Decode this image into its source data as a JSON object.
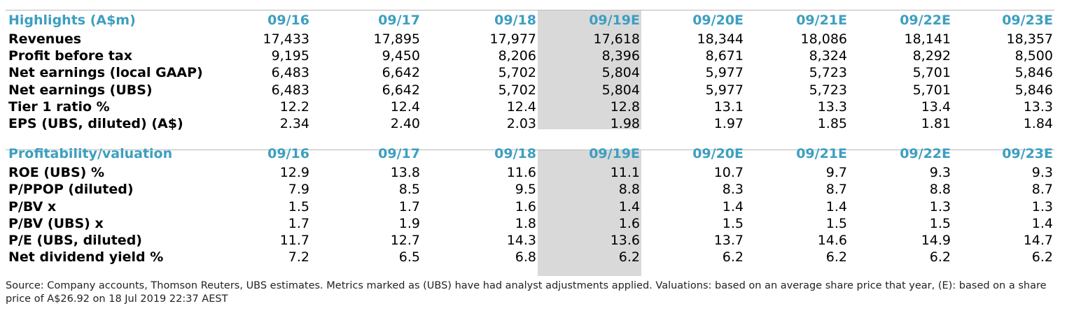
{
  "columns": [
    "09/16",
    "09/17",
    "09/18",
    "09/19E",
    "09/20E",
    "09/21E",
    "09/22E",
    "09/23E"
  ],
  "highlights": {
    "title": "Highlights (A$m)",
    "rows": [
      {
        "label": "Revenues",
        "values": [
          "17,433",
          "17,895",
          "17,977",
          "17,618",
          "18,344",
          "18,086",
          "18,141",
          "18,357"
        ]
      },
      {
        "label": "Profit before tax",
        "values": [
          "9,195",
          "9,450",
          "8,206",
          "8,396",
          "8,671",
          "8,324",
          "8,292",
          "8,500"
        ]
      },
      {
        "label": "Net earnings (local GAAP)",
        "values": [
          "6,483",
          "6,642",
          "5,702",
          "5,804",
          "5,977",
          "5,723",
          "5,701",
          "5,846"
        ]
      },
      {
        "label": "Net earnings (UBS)",
        "values": [
          "6,483",
          "6,642",
          "5,702",
          "5,804",
          "5,977",
          "5,723",
          "5,701",
          "5,846"
        ]
      },
      {
        "label": "Tier 1 ratio %",
        "values": [
          "12.2",
          "12.4",
          "12.4",
          "12.8",
          "13.1",
          "13.3",
          "13.4",
          "13.3"
        ]
      },
      {
        "label": "EPS (UBS, diluted) (A$)",
        "values": [
          "2.34",
          "2.40",
          "2.03",
          "1.98",
          "1.97",
          "1.85",
          "1.81",
          "1.84"
        ]
      }
    ]
  },
  "profitability": {
    "title": "Profitability/valuation",
    "rows": [
      {
        "label": "ROE (UBS) %",
        "values": [
          "12.9",
          "13.8",
          "11.6",
          "11.1",
          "10.7",
          "9.7",
          "9.3",
          "9.3"
        ]
      },
      {
        "label": "P/PPOP (diluted)",
        "values": [
          "7.9",
          "8.5",
          "9.5",
          "8.8",
          "8.3",
          "8.7",
          "8.8",
          "8.7"
        ]
      },
      {
        "label": "P/BV x",
        "values": [
          "1.5",
          "1.7",
          "1.6",
          "1.4",
          "1.4",
          "1.4",
          "1.3",
          "1.3"
        ]
      },
      {
        "label": "P/BV (UBS) x",
        "values": [
          "1.7",
          "1.9",
          "1.8",
          "1.6",
          "1.5",
          "1.5",
          "1.5",
          "1.4"
        ]
      },
      {
        "label": "P/E (UBS, diluted)",
        "values": [
          "11.7",
          "12.7",
          "14.3",
          "13.6",
          "13.7",
          "14.6",
          "14.9",
          "14.7"
        ]
      },
      {
        "label": "Net dividend yield %",
        "values": [
          "7.2",
          "6.5",
          "6.8",
          "6.2",
          "6.2",
          "6.2",
          "6.2",
          "6.2"
        ]
      }
    ]
  },
  "source_note": "Source: Company accounts, Thomson Reuters, UBS estimates. Metrics marked as (UBS) have had analyst adjustments applied. Valuations: based on an average share price that year, (E): based on a share price of A$26.92 on 18 Jul 2019 22:37 AEST",
  "colors": {
    "header_text": "#3d9fc0",
    "highlight_column": "#d9d9d9",
    "rule": "#b8b8b8"
  }
}
